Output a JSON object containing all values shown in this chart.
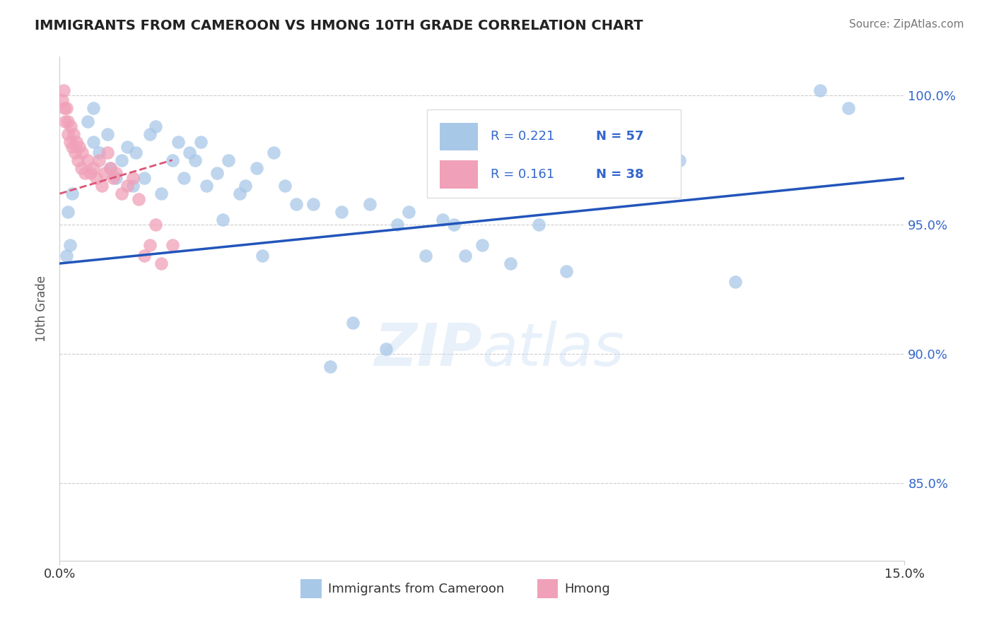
{
  "title": "IMMIGRANTS FROM CAMEROON VS HMONG 10TH GRADE CORRELATION CHART",
  "source": "Source: ZipAtlas.com",
  "ylabel": "10th Grade",
  "xlim": [
    0.0,
    15.0
  ],
  "ylim": [
    82.0,
    101.5
  ],
  "xtick_labels": [
    "0.0%",
    "15.0%"
  ],
  "ytick_vals": [
    85.0,
    90.0,
    95.0,
    100.0
  ],
  "right_ytick_labels": [
    "85.0%",
    "90.0%",
    "95.0%",
    "100.0%"
  ],
  "legend_blue_r": "R = 0.221",
  "legend_blue_n": "N = 57",
  "legend_pink_r": "R = 0.161",
  "legend_pink_n": "N = 38",
  "watermark": "ZIPatlas",
  "blue_color": "#a8c8e8",
  "pink_color": "#f0a0b8",
  "blue_line_color": "#2255bb",
  "pink_line_color": "#dd5577",
  "blue_scatter": [
    [
      0.12,
      93.8
    ],
    [
      0.18,
      94.2
    ],
    [
      0.5,
      99.0
    ],
    [
      0.6,
      98.2
    ],
    [
      0.7,
      97.8
    ],
    [
      0.85,
      98.5
    ],
    [
      0.9,
      97.2
    ],
    [
      1.0,
      96.8
    ],
    [
      1.1,
      97.5
    ],
    [
      1.2,
      98.0
    ],
    [
      1.3,
      96.5
    ],
    [
      1.35,
      97.8
    ],
    [
      1.5,
      96.8
    ],
    [
      1.6,
      98.5
    ],
    [
      1.8,
      96.2
    ],
    [
      2.0,
      97.5
    ],
    [
      2.1,
      98.2
    ],
    [
      2.2,
      96.8
    ],
    [
      2.4,
      97.5
    ],
    [
      2.5,
      98.2
    ],
    [
      2.6,
      96.5
    ],
    [
      2.8,
      97.0
    ],
    [
      3.0,
      97.5
    ],
    [
      3.2,
      96.2
    ],
    [
      3.5,
      97.2
    ],
    [
      3.8,
      97.8
    ],
    [
      4.0,
      96.5
    ],
    [
      4.5,
      95.8
    ],
    [
      5.0,
      95.5
    ],
    [
      5.5,
      95.8
    ],
    [
      6.0,
      95.0
    ],
    [
      6.5,
      93.8
    ],
    [
      6.8,
      95.2
    ],
    [
      7.0,
      95.0
    ],
    [
      7.5,
      94.2
    ],
    [
      8.0,
      93.5
    ],
    [
      8.5,
      95.0
    ],
    [
      9.0,
      93.2
    ],
    [
      10.0,
      96.8
    ],
    [
      11.0,
      97.5
    ],
    [
      12.0,
      92.8
    ],
    [
      13.5,
      100.2
    ],
    [
      14.0,
      99.5
    ],
    [
      0.15,
      95.5
    ],
    [
      0.22,
      96.2
    ],
    [
      1.7,
      98.8
    ],
    [
      2.3,
      97.8
    ],
    [
      3.3,
      96.5
    ],
    [
      4.2,
      95.8
    ],
    [
      5.2,
      91.2
    ],
    [
      5.8,
      90.2
    ],
    [
      6.2,
      95.5
    ],
    [
      7.2,
      93.8
    ],
    [
      4.8,
      89.5
    ],
    [
      3.6,
      93.8
    ],
    [
      2.9,
      95.2
    ],
    [
      0.6,
      99.5
    ]
  ],
  "pink_scatter": [
    [
      0.05,
      99.8
    ],
    [
      0.07,
      100.2
    ],
    [
      0.08,
      99.5
    ],
    [
      0.1,
      99.0
    ],
    [
      0.12,
      99.5
    ],
    [
      0.14,
      99.0
    ],
    [
      0.15,
      98.5
    ],
    [
      0.18,
      98.2
    ],
    [
      0.2,
      98.8
    ],
    [
      0.22,
      98.0
    ],
    [
      0.25,
      98.5
    ],
    [
      0.27,
      97.8
    ],
    [
      0.3,
      98.2
    ],
    [
      0.32,
      97.5
    ],
    [
      0.35,
      98.0
    ],
    [
      0.38,
      97.2
    ],
    [
      0.4,
      97.8
    ],
    [
      0.45,
      97.0
    ],
    [
      0.5,
      97.5
    ],
    [
      0.55,
      97.0
    ],
    [
      0.6,
      97.2
    ],
    [
      0.65,
      96.8
    ],
    [
      0.7,
      97.5
    ],
    [
      0.75,
      96.5
    ],
    [
      0.8,
      97.0
    ],
    [
      0.85,
      97.8
    ],
    [
      0.9,
      97.2
    ],
    [
      0.95,
      96.8
    ],
    [
      1.0,
      97.0
    ],
    [
      1.1,
      96.2
    ],
    [
      1.2,
      96.5
    ],
    [
      1.3,
      96.8
    ],
    [
      1.4,
      96.0
    ],
    [
      1.5,
      93.8
    ],
    [
      1.6,
      94.2
    ],
    [
      1.7,
      95.0
    ],
    [
      1.8,
      93.5
    ],
    [
      2.0,
      94.2
    ]
  ],
  "blue_trendline": [
    [
      0.0,
      93.5
    ],
    [
      15.0,
      96.8
    ]
  ],
  "pink_trendline": [
    [
      0.0,
      96.2
    ],
    [
      2.0,
      97.5
    ]
  ]
}
